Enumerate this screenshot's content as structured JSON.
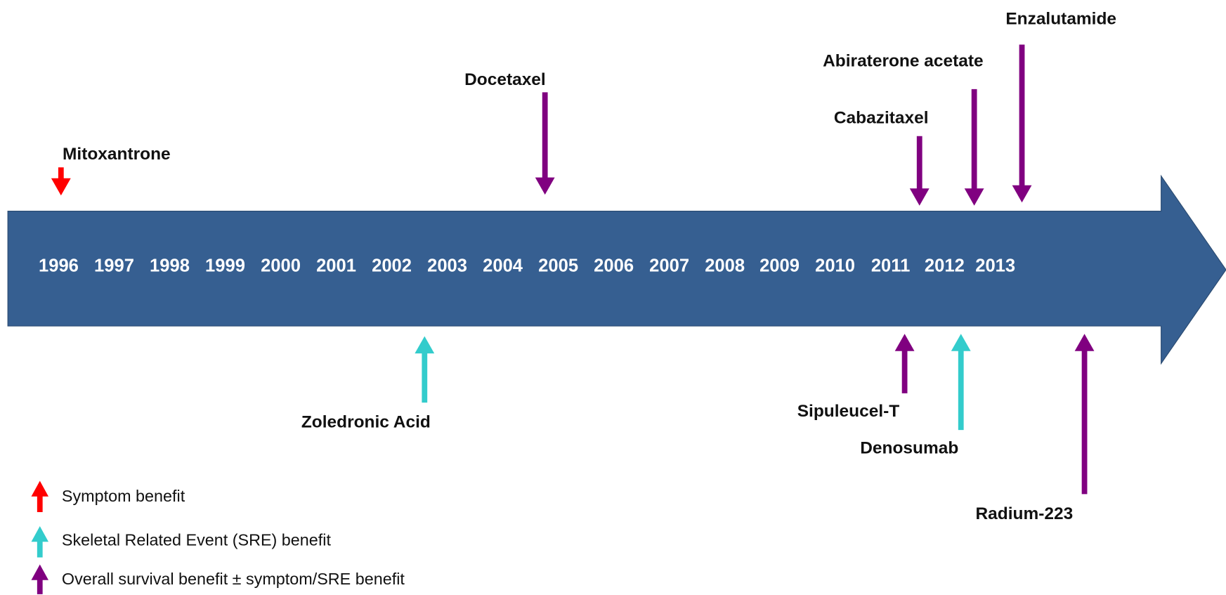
{
  "timeline": {
    "years": [
      "1996",
      "1997",
      "1998",
      "1999",
      "2000",
      "2001",
      "2002",
      "2003",
      "2004",
      "2005",
      "2006",
      "2007",
      "2008",
      "2009",
      "2010",
      "2011",
      "2012",
      "2013"
    ],
    "band_color": "#365f91"
  },
  "events": [
    {
      "label": "Mitoxantrone",
      "color": "#ff0000"
    },
    {
      "label": "Docetaxel",
      "color": "#800080"
    },
    {
      "label": "Cabazitaxel",
      "color": "#800080"
    },
    {
      "label": "Abiraterone acetate",
      "color": "#800080"
    },
    {
      "label": "Enzalutamide",
      "color": "#800080"
    },
    {
      "label": "Zoledronic Acid",
      "color": "#33cccc"
    },
    {
      "label": "Sipuleucel-T",
      "color": "#800080"
    },
    {
      "label": "Denosumab",
      "color": "#33cccc"
    },
    {
      "label": "Radium-223",
      "color": "#800080"
    }
  ],
  "legend": [
    {
      "label": "Symptom benefit",
      "color": "#ff0000"
    },
    {
      "label": "Skeletal Related Event (SRE) benefit",
      "color": "#33cccc"
    },
    {
      "label": "Overall survival benefit ± symptom/SRE benefit",
      "color": "#800080"
    }
  ]
}
